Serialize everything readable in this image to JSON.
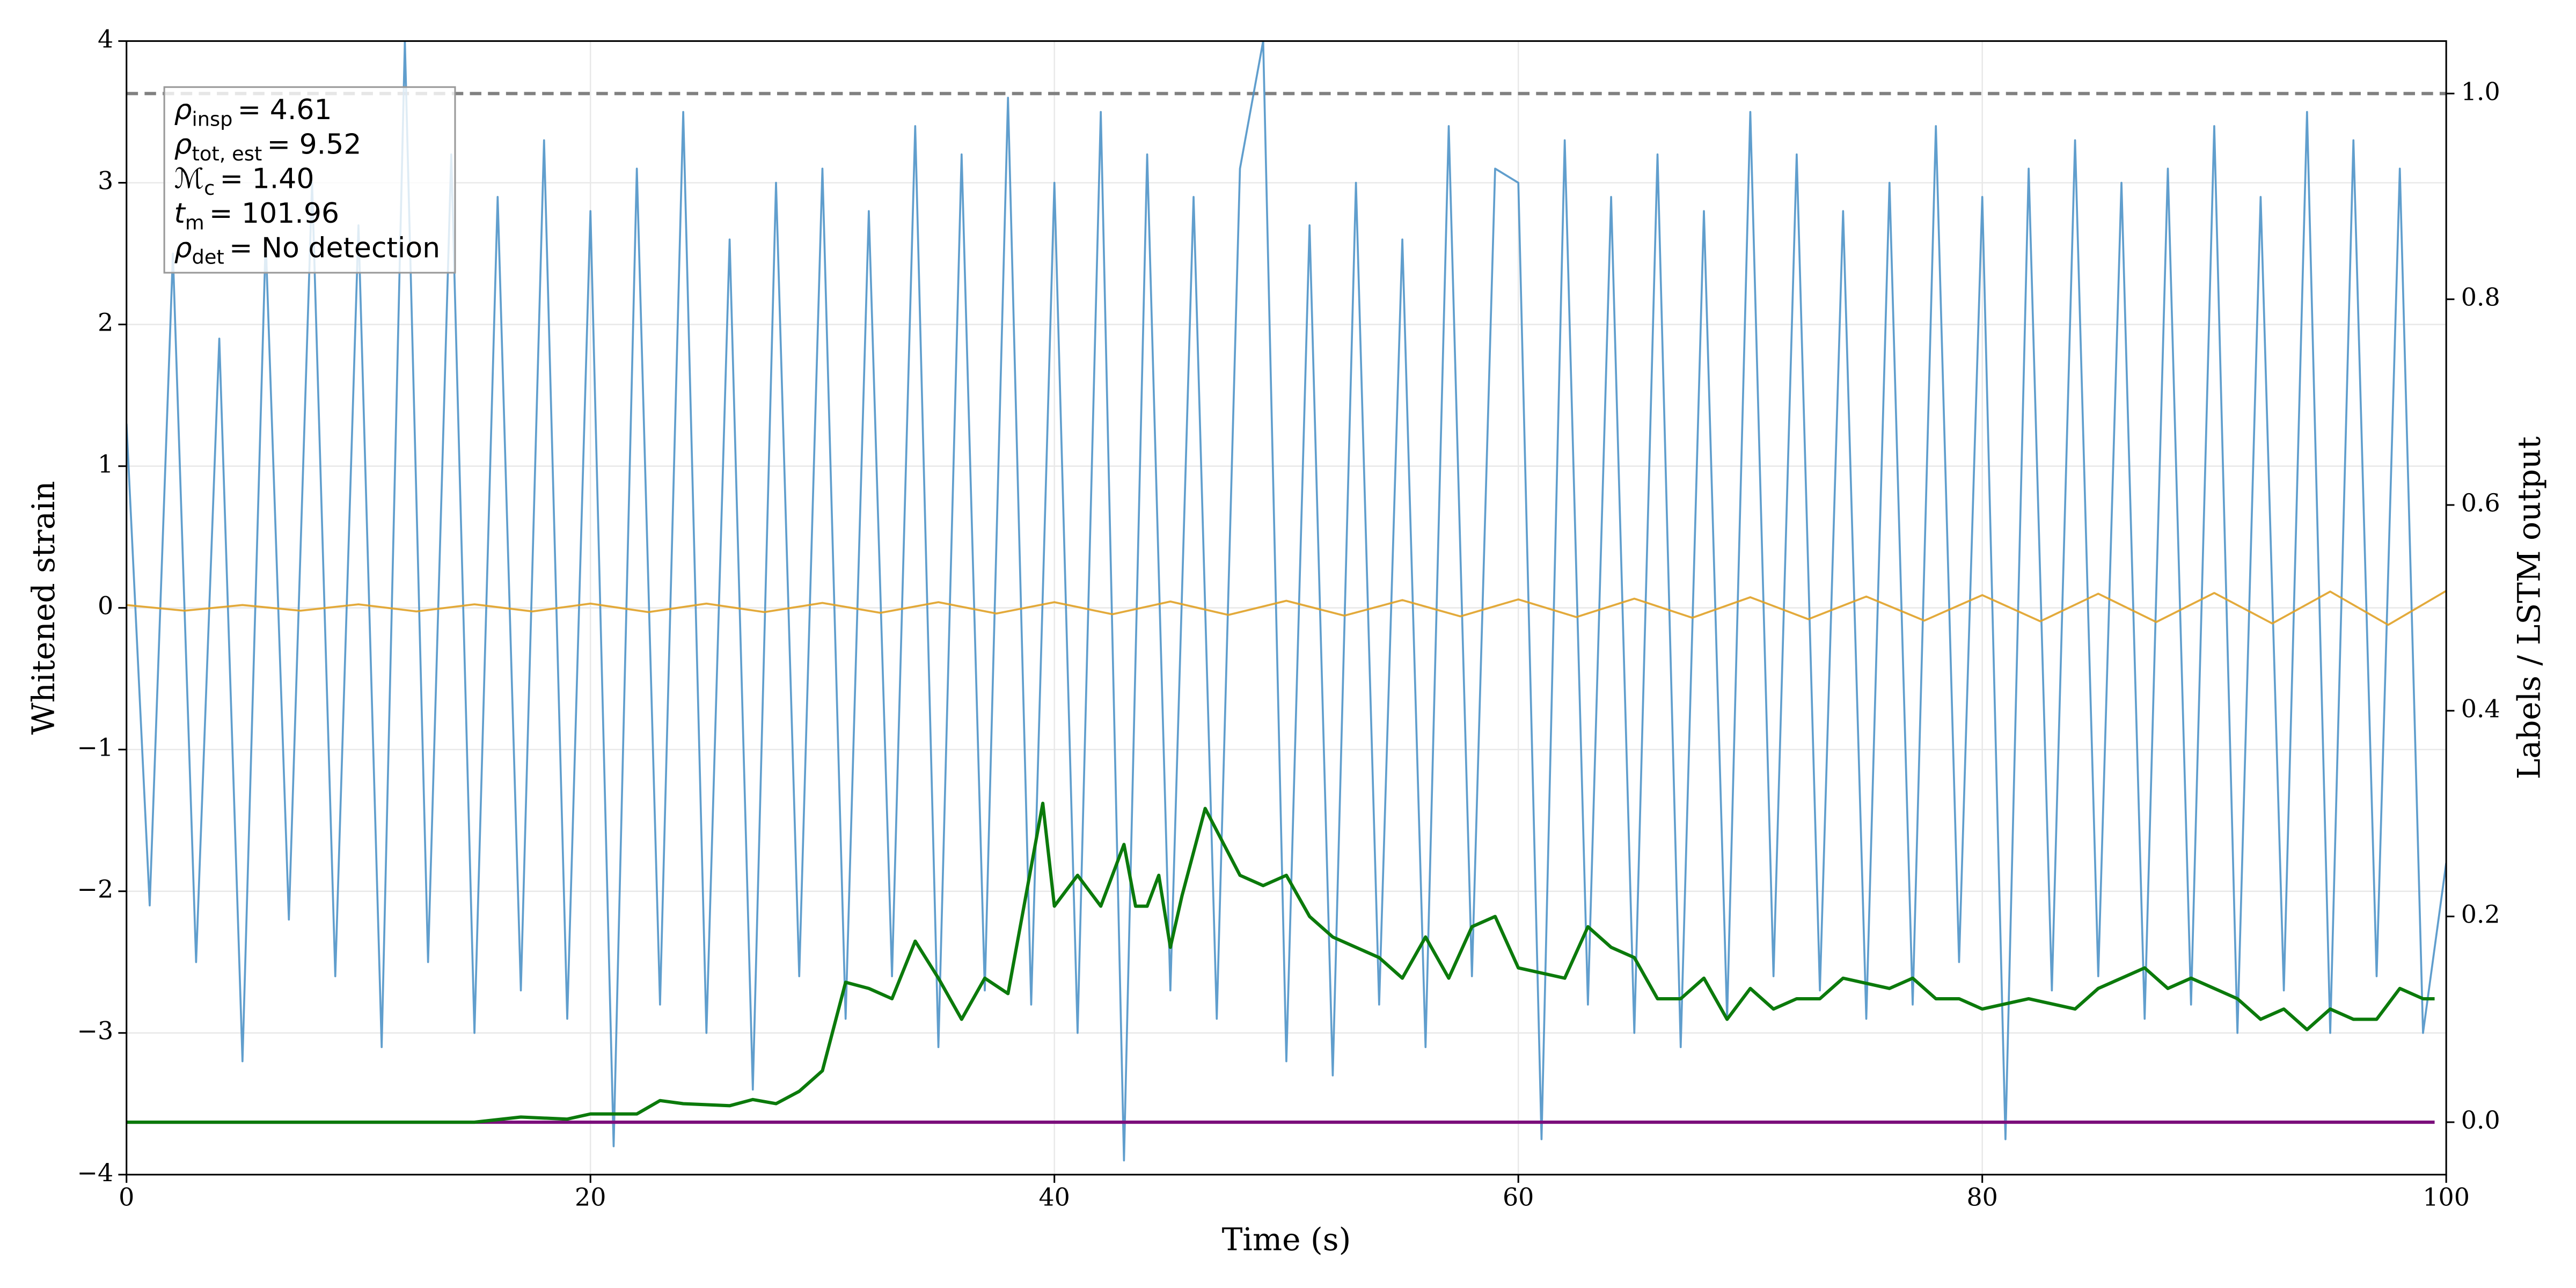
{
  "chart_data": {
    "type": "line",
    "xlabel": "Time (s)",
    "ylabel": "Whitened strain",
    "y2label": "Labels / LSTM output",
    "xlim": [
      0,
      100
    ],
    "xticks": [
      0,
      20,
      40,
      60,
      80,
      100
    ],
    "ylim": [
      -4,
      4
    ],
    "yticks": [
      {
        "value": -4,
        "label": "−4"
      },
      {
        "value": -3,
        "label": "−3"
      },
      {
        "value": -2,
        "label": "−2"
      },
      {
        "value": -1,
        "label": "−1"
      },
      0,
      1,
      2,
      3,
      4
    ],
    "y2lim": [
      -0.051,
      1.051
    ],
    "y2ticks": [
      {
        "value": 0,
        "label": "0.0"
      },
      {
        "value": 0.2,
        "label": "0.2"
      },
      {
        "value": 0.4,
        "label": "0.4"
      },
      {
        "value": 0.6,
        "label": "0.6"
      },
      {
        "value": 0.8,
        "label": "0.8"
      },
      {
        "value": 1,
        "label": "1.0"
      }
    ],
    "grid": true,
    "hlines": [
      {
        "value": 1.0,
        "axis": "y2",
        "color": "#808080",
        "style": "dashed"
      }
    ],
    "series": [
      {
        "color": "#4f93c8",
        "axis": "y",
        "x": [
          0,
          1,
          2,
          3,
          4,
          5,
          6,
          7,
          8,
          9,
          10,
          11,
          12,
          13,
          14,
          15,
          16,
          17,
          18,
          19,
          20,
          21,
          22,
          23,
          24,
          25,
          26,
          27,
          28,
          29,
          30,
          31,
          32,
          33,
          34,
          35,
          36,
          37,
          38,
          39,
          40,
          41,
          42,
          43,
          44,
          45,
          46,
          47,
          48,
          49,
          50,
          51,
          52,
          53,
          54,
          55,
          56,
          57,
          58,
          59,
          60,
          61,
          62,
          63,
          64,
          65,
          66,
          67,
          68,
          69,
          70,
          71,
          72,
          73,
          74,
          75,
          76,
          77,
          78,
          79,
          80,
          81,
          82,
          83,
          84,
          85,
          86,
          87,
          88,
          89,
          90,
          91,
          92,
          93,
          94,
          95,
          96,
          97,
          98,
          99,
          100
        ],
        "values": [
          1.3,
          -2.1,
          2.5,
          -2.5,
          1.9,
          -3.2,
          2.6,
          -2.2,
          3.0,
          -2.6,
          2.7,
          -3.1,
          4,
          -2.5,
          3.2,
          -3.0,
          2.9,
          -2.7,
          3.3,
          -2.9,
          2.8,
          -3.8,
          3.1,
          -2.8,
          3.5,
          -3.0,
          2.6,
          -3.4,
          3.0,
          -2.6,
          3.1,
          -2.9,
          2.8,
          -2.6,
          3.4,
          -3.1,
          3.2,
          -2.7,
          3.6,
          -2.8,
          3.0,
          -3.0,
          3.5,
          -3.9,
          3.2,
          -2.7,
          2.9,
          -2.9,
          3.1,
          4,
          -3.2,
          2.7,
          -3.3,
          3.0,
          -2.8,
          2.6,
          -3.1,
          3.4,
          -2.6,
          3.1,
          3.0,
          -3.75,
          3.3,
          -2.8,
          2.9,
          -3.0,
          3.2,
          -3.1,
          2.8,
          -2.9,
          3.5,
          -2.6,
          3.2,
          -2.7,
          2.8,
          -2.9,
          3.0,
          -2.8,
          3.4,
          -2.5,
          2.9,
          -3.75,
          3.1,
          -2.7,
          3.3,
          -2.6,
          3.0,
          -2.9,
          3.1,
          -2.8,
          3.4,
          -3.0,
          2.9,
          -2.7,
          3.5,
          -3.0,
          3.3,
          -2.6,
          3.1,
          -3.0,
          -1.8
        ]
      },
      {
        "color": "#e0a126",
        "axis": "y",
        "x": [
          0,
          2.5,
          5,
          7.5,
          10,
          12.5,
          15,
          17.5,
          20,
          22.5,
          25,
          27.5,
          30,
          32.5,
          35,
          37.5,
          40,
          42.5,
          45,
          47.5,
          50,
          52.5,
          55,
          57.5,
          60,
          62.5,
          65,
          67.5,
          70,
          72.5,
          75,
          77.5,
          80,
          82.5,
          85,
          87.5,
          90,
          92.5,
          95,
          97.5,
          100
        ],
        "values": [
          0.02,
          -0.02,
          0.02,
          -0.02,
          0.025,
          -0.025,
          0.025,
          -0.025,
          0.03,
          -0.03,
          0.03,
          -0.03,
          0.035,
          -0.035,
          0.04,
          -0.04,
          0.04,
          -0.045,
          0.045,
          -0.05,
          0.05,
          -0.055,
          0.055,
          -0.06,
          0.06,
          -0.065,
          0.065,
          -0.07,
          0.075,
          -0.08,
          0.08,
          -0.09,
          0.09,
          -0.095,
          0.1,
          -0.1,
          0.105,
          -0.11,
          0.115,
          -0.12,
          0.12
        ]
      },
      {
        "color": "#7b0f7b",
        "axis": "y2",
        "x": [
          0,
          99.5
        ],
        "values": [
          0,
          0
        ]
      },
      {
        "color": "#0b7a0b",
        "axis": "y2",
        "x": [
          0,
          15,
          17,
          19,
          20,
          22,
          23,
          24,
          26,
          27,
          28,
          29,
          30,
          31,
          32,
          33,
          34,
          35,
          36,
          37,
          38,
          39.5,
          40,
          41,
          42,
          43,
          43.5,
          44,
          44.5,
          45,
          45.5,
          46.5,
          48,
          49,
          50,
          51,
          52,
          53,
          54,
          55,
          56,
          57,
          58,
          59,
          60,
          62,
          63,
          64,
          65,
          66,
          67,
          68,
          69,
          70,
          71,
          72,
          73,
          74,
          76,
          77,
          78,
          79,
          80,
          82,
          84,
          85,
          86,
          87,
          88,
          89,
          90,
          91,
          92,
          93,
          94,
          95,
          96,
          97,
          98,
          99,
          99.5
        ],
        "values": [
          0,
          0,
          0.005,
          0.003,
          0.008,
          0.008,
          0.021,
          0.018,
          0.016,
          0.022,
          0.018,
          0.03,
          0.05,
          0.136,
          0.13,
          0.12,
          0.176,
          0.14,
          0.1,
          0.14,
          0.125,
          0.31,
          0.21,
          0.24,
          0.21,
          0.27,
          0.21,
          0.21,
          0.24,
          0.17,
          0.22,
          0.305,
          0.24,
          0.23,
          0.24,
          0.2,
          0.18,
          0.17,
          0.16,
          0.14,
          0.18,
          0.14,
          0.19,
          0.2,
          0.15,
          0.14,
          0.19,
          0.17,
          0.16,
          0.12,
          0.12,
          0.14,
          0.1,
          0.13,
          0.11,
          0.12,
          0.12,
          0.14,
          0.13,
          0.14,
          0.12,
          0.12,
          0.11,
          0.12,
          0.11,
          0.13,
          0.14,
          0.15,
          0.13,
          0.14,
          0.13,
          0.12,
          0.1,
          0.11,
          0.09,
          0.11,
          0.1,
          0.1,
          0.13,
          0.12,
          0.12
        ]
      }
    ],
    "annotations": [
      {
        "symbol": "ρ",
        "sub": "insp",
        "text": "= 4.61"
      },
      {
        "symbol": "ρ",
        "sub": "tot, est",
        "text": "= 9.52"
      },
      {
        "symbol": "ℳ",
        "sub": "c",
        "text": "= 1.40"
      },
      {
        "symbol": "t",
        "sub": "m",
        "text": "= 101.96"
      },
      {
        "symbol": "ρ",
        "sub": "det",
        "text": "= No detection"
      }
    ]
  }
}
